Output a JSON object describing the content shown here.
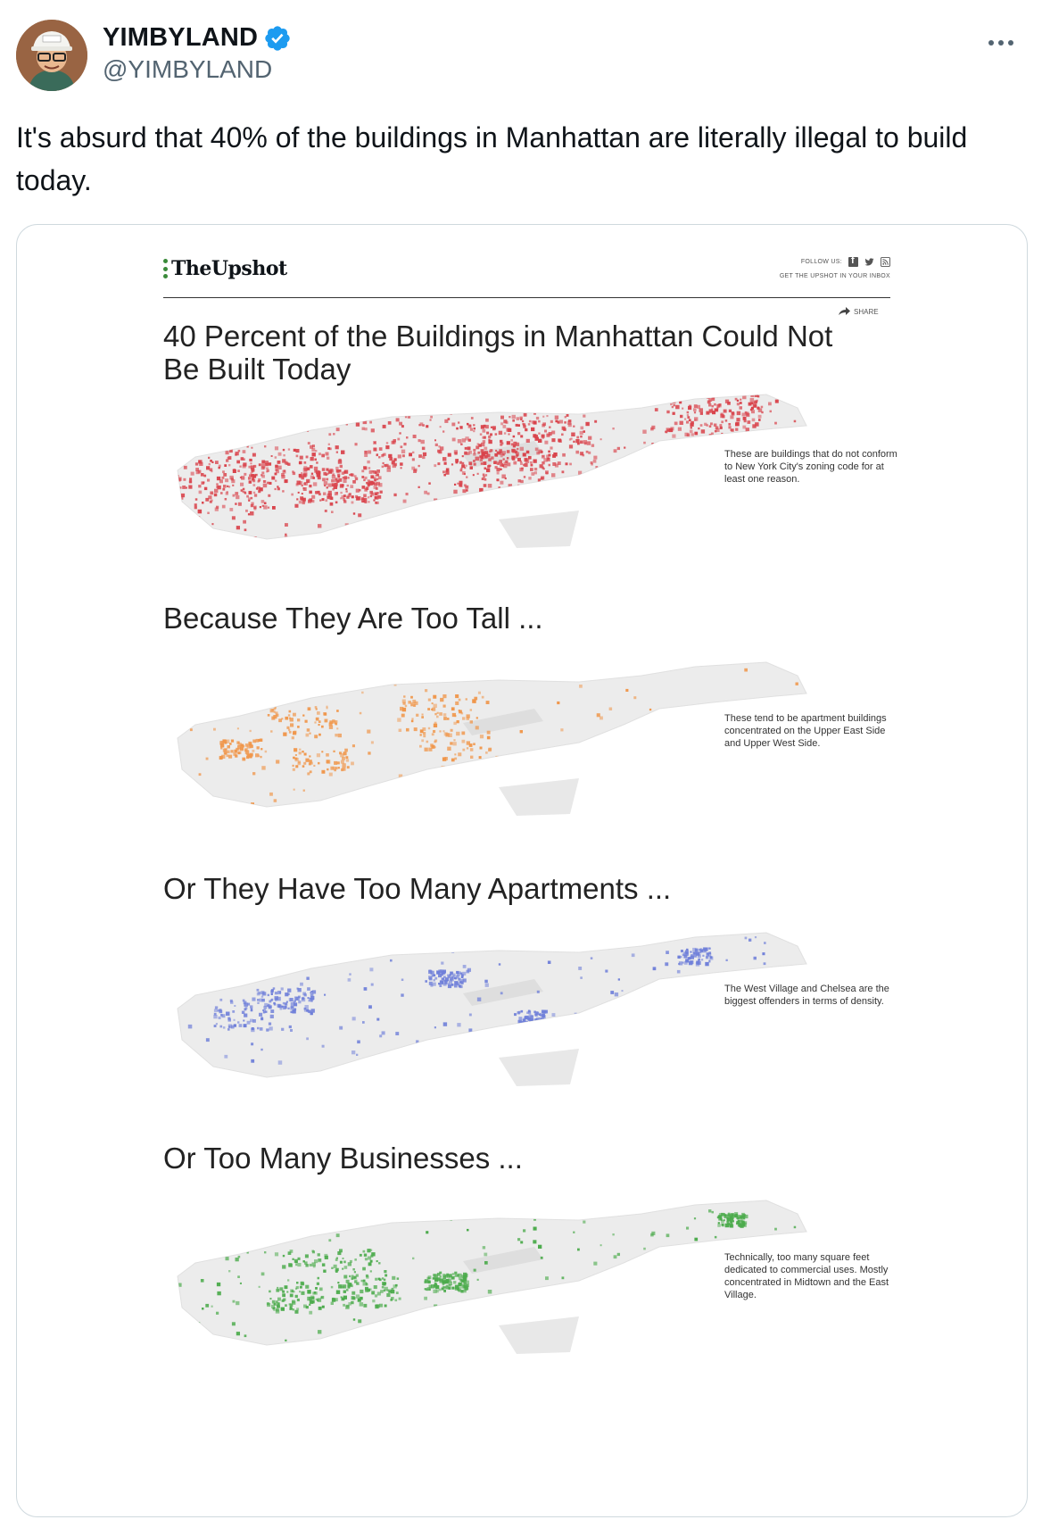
{
  "tweet": {
    "author_name": "YIMBYLAND",
    "handle": "@YIMBYLAND",
    "text": "It's absurd that 40% of the buildings in Manhattan are literally illegal to build today."
  },
  "image": {
    "brand": "TheUpshot",
    "follow_label": "FOLLOW US:",
    "signup_label": "GET THE UPSHOT IN YOUR INBOX",
    "share_label": "SHARE",
    "sections": [
      {
        "title": "40 Percent of the Buildings in Manhattan Could Not Be Built Today",
        "caption": "These are buildings that do not conform to New York City's zoning code for at least one reason.",
        "color": "#d9434b"
      },
      {
        "title": "Because They Are Too Tall ...",
        "caption": "These tend to be apartment buildings concentrated on the Upper East Side and Upper West Side.",
        "color": "#f0964a"
      },
      {
        "title": "Or They Have Too Many Apartments ...",
        "caption": "The West Village and Chelsea are the biggest offenders in terms of density.",
        "color": "#6f7fd9"
      },
      {
        "title": "Or Too Many Businesses ...",
        "caption": "Technically, too many square feet dedicated to commercial uses. Mostly concentrated in Midtown and the East Village.",
        "color": "#4cab4c"
      }
    ]
  }
}
